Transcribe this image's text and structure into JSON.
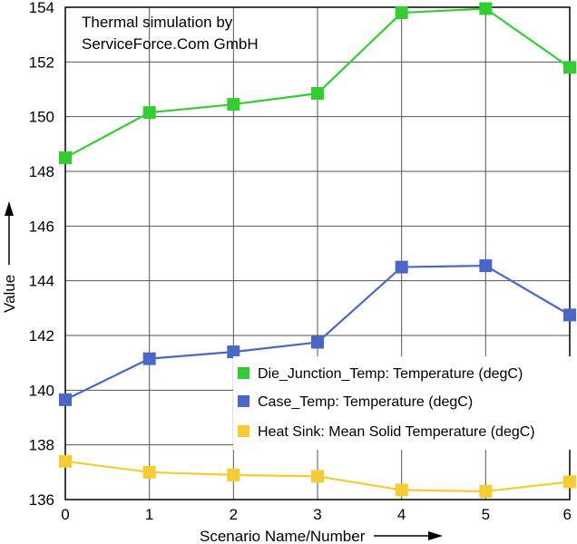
{
  "chart_data": {
    "type": "line",
    "title": "",
    "annotation_lines": [
      "Thermal simulation by",
      "ServiceForce.Com GmbH"
    ],
    "xlabel": "Scenario Name/Number",
    "ylabel": "Value",
    "x": [
      0,
      1,
      2,
      3,
      4,
      5,
      6
    ],
    "xlim": [
      0,
      6
    ],
    "ylim": [
      136,
      154
    ],
    "yticks": [
      136,
      138,
      140,
      142,
      144,
      146,
      148,
      150,
      152,
      154
    ],
    "grid": true,
    "legend_position": "bottom-right",
    "series": [
      {
        "name": "Die_Junction_Temp: Temperature (degC)",
        "color": "#33cc33",
        "values": [
          148.5,
          150.15,
          150.45,
          150.85,
          153.8,
          153.95,
          151.8
        ]
      },
      {
        "name": "Case_Temp: Temperature (degC)",
        "color": "#4a67c8",
        "values": [
          139.65,
          141.15,
          141.4,
          141.75,
          144.5,
          144.55,
          142.75
        ]
      },
      {
        "name": "Heat Sink: Mean Solid Temperature (degC)",
        "color": "#f5cc33",
        "values": [
          137.4,
          137.0,
          136.9,
          136.85,
          136.35,
          136.3,
          136.65
        ]
      }
    ]
  }
}
